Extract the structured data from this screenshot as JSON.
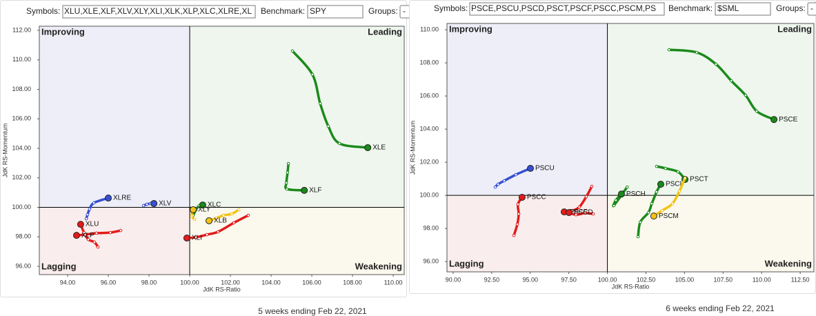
{
  "toolbars": [
    {
      "symbols_label": "Symbols:",
      "symbols": "XLU,XLE,XLF,XLV,XLY,XLI,XLK,XLP,XLC,XLRE,XL",
      "benchmark_label": "Benchmark:",
      "benchmark": "SPY",
      "groups_label": "Groups:",
      "groups": "-"
    },
    {
      "symbols_label": "Symbols:",
      "symbols": "PSCE,PSCU,PSCD,PSCT,PSCF,PSCC,PSCM,PS",
      "benchmark_label": "Benchmark:",
      "benchmark": "$SML",
      "groups_label": "Groups:",
      "groups": "-"
    }
  ],
  "chart_data": [
    {
      "type": "rrg",
      "caption": "5 weeks ending Feb 22, 2021",
      "x_label": "JdK RS-Ratio",
      "y_label": "JdK RS-Momentum",
      "quadrants": {
        "improving": "Improving",
        "leading": "Leading",
        "lagging": "Lagging",
        "weakening": "Weakening"
      },
      "xlim": [
        92.61,
        110.54
      ],
      "ylim": [
        95.44,
        112.28
      ],
      "xticks": [
        {
          "value": 94,
          "label": "94.00"
        },
        {
          "value": 96,
          "label": "96.00"
        },
        {
          "value": 98,
          "label": "98.00"
        },
        {
          "value": 100,
          "label": "100.00"
        },
        {
          "value": 102,
          "label": "102.00"
        },
        {
          "value": 104,
          "label": "104.00"
        },
        {
          "value": 106,
          "label": "106.00"
        },
        {
          "value": 108,
          "label": "108.00"
        },
        {
          "value": 110,
          "label": "110.00"
        }
      ],
      "yticks": [
        {
          "value": 96,
          "label": "96.00"
        },
        {
          "value": 98,
          "label": "98.00"
        },
        {
          "value": 100,
          "label": "100.00"
        },
        {
          "value": 102,
          "label": "102.00"
        },
        {
          "value": 104,
          "label": "104.00"
        },
        {
          "value": 106,
          "label": "106.00"
        },
        {
          "value": 108,
          "label": "108.00"
        },
        {
          "value": 110,
          "label": "110.00"
        },
        {
          "value": 112,
          "label": "112.00"
        }
      ],
      "series": [
        {
          "name": "XLE",
          "color": "#1a8a1a",
          "x": [
            105.05,
            106.03,
            106.41,
            106.81,
            107.36,
            108.75
          ],
          "y": [
            110.6,
            109.01,
            107.04,
            105.5,
            104.33,
            104.05
          ]
        },
        {
          "name": "XLF",
          "color": "#1a8a1a",
          "x": [
            104.85,
            104.81,
            104.75,
            104.78,
            105.63
          ],
          "y": [
            102.97,
            102.36,
            101.66,
            101.24,
            101.15
          ]
        },
        {
          "name": "XLC",
          "color": "#1a8a1a",
          "x": [
            100.17,
            100.31,
            100.47,
            100.64
          ],
          "y": [
            99.46,
            99.84,
            100.12,
            100.16
          ]
        },
        {
          "name": "XLY",
          "color": "#f2c314",
          "x": [
            100.24,
            100.1,
            100.17
          ],
          "y": [
            99.18,
            99.41,
            99.84
          ]
        },
        {
          "name": "XLB",
          "color": "#f2c314",
          "x": [
            102.41,
            102.07,
            101.66,
            101.32,
            100.95
          ],
          "y": [
            99.84,
            99.56,
            99.46,
            99.27,
            99.09
          ]
        },
        {
          "name": "XLI",
          "color": "#e31b1b",
          "x": [
            102.88,
            102.17,
            101.39,
            100.85,
            100.31,
            99.86
          ],
          "y": [
            99.46,
            98.95,
            98.34,
            98.15,
            97.97,
            97.92
          ]
        },
        {
          "name": "XLU",
          "color": "#e31b1b",
          "x": [
            95.49,
            95.32,
            95.02,
            94.81,
            94.64
          ],
          "y": [
            97.31,
            97.64,
            97.82,
            98.29,
            98.85
          ]
        },
        {
          "name": "XLP",
          "color": "#e31b1b",
          "x": [
            96.61,
            96.1,
            95.42,
            94.85,
            94.44
          ],
          "y": [
            98.43,
            98.29,
            98.25,
            98.15,
            98.1
          ]
        },
        {
          "name": "XLRE",
          "color": "#3650d0",
          "x": [
            94.92,
            94.98,
            95.08,
            95.29,
            96.0
          ],
          "y": [
            99.23,
            99.51,
            99.88,
            100.3,
            100.63
          ]
        },
        {
          "name": "XLV",
          "color": "#3650d0",
          "x": [
            97.73,
            97.9,
            98.07,
            98.24
          ],
          "y": [
            100.12,
            100.21,
            100.26,
            100.26
          ]
        }
      ]
    },
    {
      "type": "rrg",
      "caption": "6 weeks ending Feb 22, 2021",
      "x_label": "JdK RS-Ratio",
      "y_label": "JdK RS-Momentum",
      "quadrants": {
        "improving": "Improving",
        "leading": "Leading",
        "lagging": "Lagging",
        "weakening": "Weakening"
      },
      "xlim": [
        89.6,
        113.39
      ],
      "ylim": [
        95.38,
        110.38
      ],
      "xticks": [
        {
          "value": 90,
          "label": "90.00"
        },
        {
          "value": 92.5,
          "label": "92.50"
        },
        {
          "value": 95,
          "label": "95.00"
        },
        {
          "value": 97.5,
          "label": "97.50"
        },
        {
          "value": 100,
          "label": "100.00"
        },
        {
          "value": 102.5,
          "label": "102.50"
        },
        {
          "value": 105,
          "label": "105.00"
        },
        {
          "value": 107.5,
          "label": "107.50"
        },
        {
          "value": 110,
          "label": "110.00"
        },
        {
          "value": 112.5,
          "label": "112.50"
        }
      ],
      "yticks": [
        {
          "value": 96,
          "label": "96.00"
        },
        {
          "value": 98,
          "label": "98.00"
        },
        {
          "value": 100,
          "label": "100.00"
        },
        {
          "value": 102,
          "label": "102.00"
        },
        {
          "value": 104,
          "label": "104.00"
        },
        {
          "value": 106,
          "label": "106.00"
        },
        {
          "value": 108,
          "label": "108.00"
        },
        {
          "value": 110,
          "label": "110.00"
        }
      ],
      "series": [
        {
          "name": "PSCE",
          "color": "#1a8a1a",
          "x": [
            104.0,
            105.79,
            107.04,
            108.03,
            108.96,
            109.68,
            110.8
          ],
          "y": [
            108.79,
            108.63,
            107.92,
            106.92,
            106.04,
            105.08,
            104.58
          ]
        },
        {
          "name": "PSCT",
          "color": "#1a8a1a",
          "x": [
            103.19,
            103.77,
            104.58,
            105.03
          ],
          "y": [
            101.75,
            101.63,
            101.42,
            100.96
          ]
        },
        {
          "name": "PSCI",
          "color": "#1a8a1a",
          "x": [
            101.99,
            102.13,
            102.66,
            102.88,
            103.19,
            103.46
          ],
          "y": [
            97.5,
            98.38,
            98.96,
            99.5,
            100.21,
            100.67
          ]
        },
        {
          "name": "PSCH",
          "color": "#1a8a1a",
          "x": [
            101.28,
            100.42,
            100.55,
            100.91
          ],
          "y": [
            100.5,
            99.38,
            99.71,
            100.08
          ]
        },
        {
          "name": "PSCM",
          "color": "#f2c314",
          "x": [
            105.03,
            104.67,
            104.22,
            103.55,
            103.01
          ],
          "y": [
            101.04,
            100.25,
            99.5,
            99.08,
            98.75
          ]
        },
        {
          "name": "PSCU",
          "color": "#3650d0",
          "x": [
            92.73,
            92.91,
            93.31,
            94.07,
            95.01
          ],
          "y": [
            100.5,
            100.67,
            100.88,
            101.25,
            101.63
          ]
        },
        {
          "name": "PSCC",
          "color": "#e31b1b",
          "x": [
            93.94,
            94.16,
            94.25,
            94.2,
            94.47
          ],
          "y": [
            97.58,
            98.25,
            98.88,
            99.46,
            99.88
          ]
        },
        {
          "name": "PSCF",
          "color": "#e31b1b",
          "x": [
            98.99,
            98.63,
            98.18,
            97.74,
            97.2
          ],
          "y": [
            100.54,
            99.92,
            99.29,
            99.08,
            99.0
          ]
        },
        {
          "name": "PSCD",
          "color": "#e31b1b",
          "x": [
            99.08,
            98.54,
            97.96,
            97.51
          ],
          "y": [
            98.88,
            98.92,
            98.83,
            98.96
          ]
        }
      ]
    }
  ]
}
